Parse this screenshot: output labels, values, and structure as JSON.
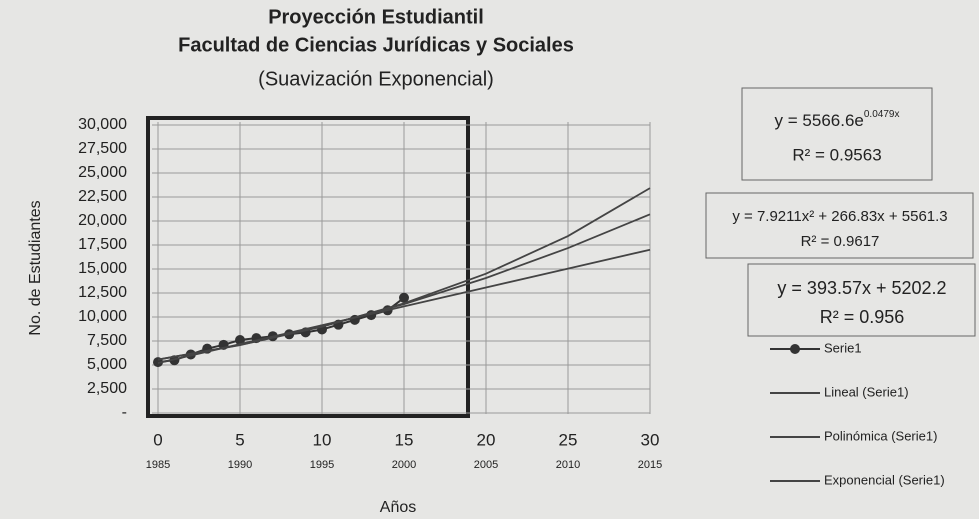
{
  "chart_data": {
    "type": "line",
    "title": "Proyección Estudiantil",
    "subtitle": "Facultad de Ciencias Jurídicas y Sociales",
    "subtitle2": "(Suavización Exponencial)",
    "ylabel": "No. de Estudiantes",
    "xlabel": "Años",
    "xlim": [
      0,
      30
    ],
    "xticks": [
      0,
      5,
      10,
      15,
      20,
      25,
      30
    ],
    "xtick_years": [
      "1985",
      "1990",
      "1995",
      "2000",
      "2005",
      "2010",
      "2015"
    ],
    "ylim": [
      0,
      30000
    ],
    "yticks": [
      {
        "value": 0,
        "label": "-"
      },
      {
        "value": 2500,
        "label": "2,500"
      },
      {
        "value": 5000,
        "label": "5,000"
      },
      {
        "value": 7500,
        "label": "7,500"
      },
      {
        "value": 10000,
        "label": "10,000"
      },
      {
        "value": 12500,
        "label": "12,500"
      },
      {
        "value": 15000,
        "label": "15,000"
      },
      {
        "value": 17500,
        "label": "17,500"
      },
      {
        "value": 20000,
        "label": "20,000"
      },
      {
        "value": 22500,
        "label": "22,500"
      },
      {
        "value": 25000,
        "label": "25,000"
      },
      {
        "value": 27500,
        "label": "27,500"
      },
      {
        "value": 30000,
        "label": "30,000"
      }
    ],
    "grid": true,
    "series": [
      {
        "name": "Serie1",
        "color": "#333333",
        "markers": true,
        "x": [
          0,
          1,
          2,
          3,
          4,
          5,
          6,
          7,
          8,
          9,
          10,
          11,
          12,
          13,
          14,
          15
        ],
        "values": [
          5300,
          5500,
          6100,
          6700,
          7100,
          7600,
          7800,
          8000,
          8200,
          8400,
          8700,
          9200,
          9700,
          10200,
          10700,
          12000
        ]
      },
      {
        "name": "Lineal (Serie1)",
        "color": "#444444",
        "markers": false,
        "x": [
          0,
          5,
          10,
          15,
          20,
          25,
          30
        ],
        "values": [
          5202,
          7170,
          9138,
          11106,
          13074,
          15041,
          17009
        ]
      },
      {
        "name": "Polinómica (Serie1)",
        "color": "#444444",
        "markers": false,
        "x": [
          0,
          5,
          10,
          15,
          20,
          25,
          30
        ],
        "values": [
          5561,
          7093,
          9022,
          11346,
          14066,
          17183,
          20695
        ]
      },
      {
        "name": "Exponencial (Serie1)",
        "color": "#444444",
        "markers": false,
        "x": [
          0,
          5,
          10,
          15,
          20,
          25,
          30
        ],
        "values": [
          5567,
          7073,
          8987,
          11419,
          14509,
          18436,
          23424
        ]
      }
    ],
    "annotations": [
      {
        "equation": "y = 5566.6e",
        "exponent": "0.0479x",
        "r2": "R² = 0.9563"
      },
      {
        "equation": "y = 7.9211x² + 266.83x + 5561.3",
        "r2": "R² = 0.9617"
      },
      {
        "equation": "y = 393.57x + 5202.2",
        "r2": "R² = 0.956"
      }
    ]
  }
}
